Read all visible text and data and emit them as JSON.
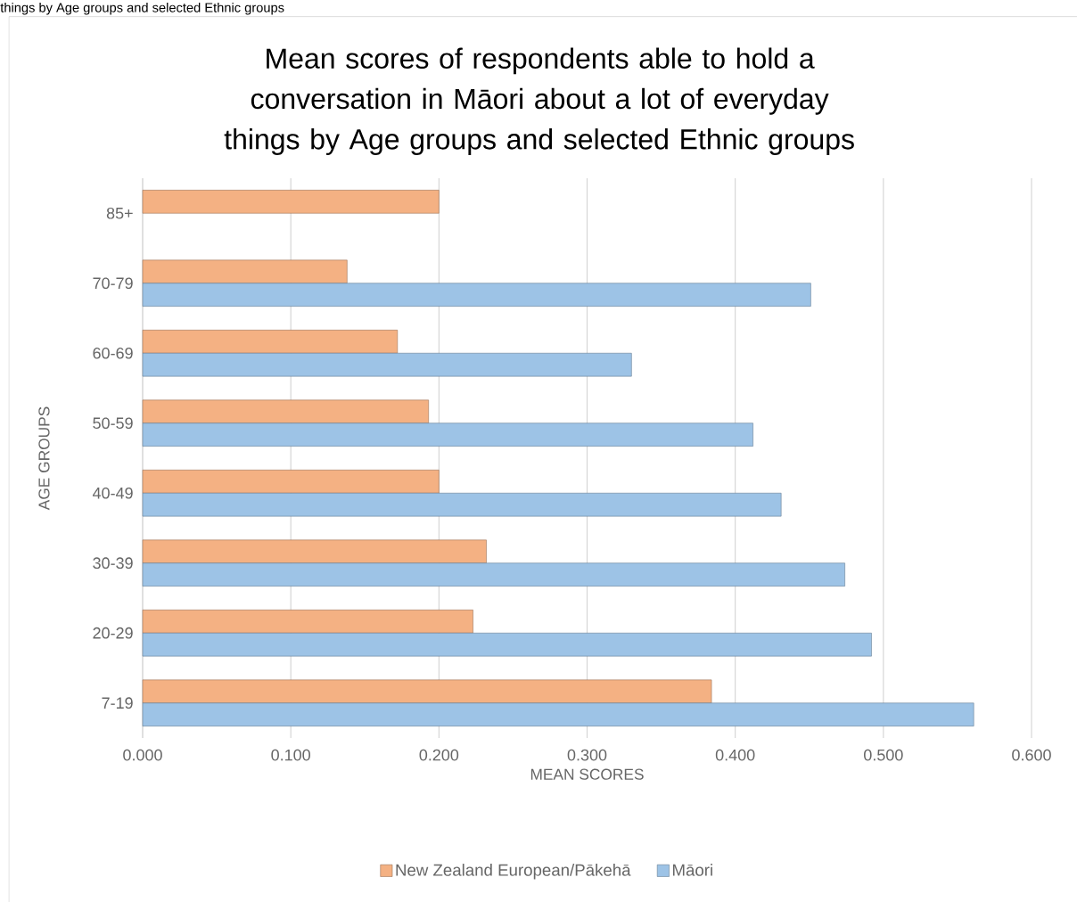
{
  "chart_data": {
    "type": "bar",
    "orientation": "horizontal",
    "title": "Mean scores of respondents able to hold a conversation in Māori about a lot of everyday things by Age groups and selected Ethnic groups",
    "xlabel": "MEAN SCORES",
    "ylabel": "AGE GROUPS",
    "annotations": [
      "things by Age groups and selected Ethnic groups"
    ],
    "categories": [
      "85+",
      "70-79",
      "60-69",
      "50-59",
      "40-49",
      "30-39",
      "20-29",
      "7-19"
    ],
    "series": [
      {
        "name": "New Zealand European/Pākehā",
        "color": "#f4b183",
        "values": [
          0.2,
          0.138,
          0.172,
          0.193,
          0.2,
          0.232,
          0.223,
          0.384
        ]
      },
      {
        "name": "Māori",
        "color": "#9dc3e6",
        "values": [
          null,
          0.451,
          0.33,
          0.412,
          0.431,
          0.474,
          0.492,
          0.561
        ]
      }
    ],
    "xlim": [
      0,
      0.6
    ],
    "xticks": [
      {
        "value": 0,
        "label": "0.000"
      },
      {
        "value": 0.1,
        "label": "0.100"
      },
      {
        "value": 0.2,
        "label": "0.200"
      },
      {
        "value": 0.3,
        "label": "0.300"
      },
      {
        "value": 0.4,
        "label": "0.400"
      },
      {
        "value": 0.5,
        "label": "0.500"
      },
      {
        "value": 0.6,
        "label": "0.600"
      }
    ],
    "grid": "x",
    "legend": "bottom"
  }
}
